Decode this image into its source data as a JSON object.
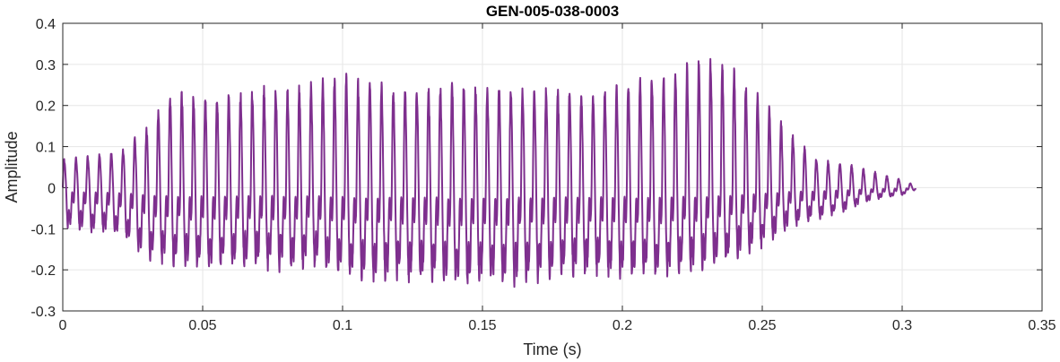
{
  "chart_data": {
    "type": "line",
    "title": "GEN-005-038-0003",
    "xlabel": "Time (s)",
    "ylabel": "Amplitude",
    "xlim": [
      0,
      0.35
    ],
    "ylim": [
      -0.3,
      0.4
    ],
    "x_ticks": [
      "0",
      "0.05",
      "0.1",
      "0.15",
      "0.2",
      "0.25",
      "0.3",
      "0.35"
    ],
    "y_ticks": [
      "-0.3",
      "-0.2",
      "-0.1",
      "0",
      "0.1",
      "0.2",
      "0.3",
      "0.4"
    ],
    "grid": true,
    "colors": {
      "line": "#7E2F8E",
      "grid": "#e6e6e6",
      "axis": "#262626"
    },
    "series": [
      {
        "x": [
          0,
          0.01,
          0.02,
          0.03,
          0.04,
          0.05,
          0.06,
          0.07,
          0.08,
          0.09,
          0.1,
          0.11,
          0.12,
          0.13,
          0.14,
          0.15,
          0.16,
          0.17,
          0.18,
          0.19,
          0.2,
          0.21,
          0.22,
          0.23,
          0.24,
          0.25,
          0.26,
          0.27,
          0.28,
          0.29,
          0.3,
          0.305
        ],
        "upper_envelope": [
          0.07,
          0.08,
          0.09,
          0.15,
          0.25,
          0.23,
          0.24,
          0.25,
          0.25,
          0.27,
          0.28,
          0.27,
          0.25,
          0.25,
          0.27,
          0.25,
          0.26,
          0.25,
          0.25,
          0.24,
          0.26,
          0.28,
          0.3,
          0.33,
          0.3,
          0.22,
          0.14,
          0.07,
          0.06,
          0.04,
          0.02,
          0.005
        ],
        "lower_envelope": [
          -0.1,
          -0.11,
          -0.12,
          -0.18,
          -0.2,
          -0.21,
          -0.2,
          -0.2,
          -0.21,
          -0.2,
          -0.22,
          -0.24,
          -0.23,
          -0.24,
          -0.25,
          -0.24,
          -0.25,
          -0.24,
          -0.23,
          -0.22,
          -0.23,
          -0.23,
          -0.22,
          -0.21,
          -0.18,
          -0.15,
          -0.1,
          -0.08,
          -0.06,
          -0.03,
          -0.02,
          -0.005
        ],
        "pitch_period_s": 0.0042
      }
    ]
  }
}
